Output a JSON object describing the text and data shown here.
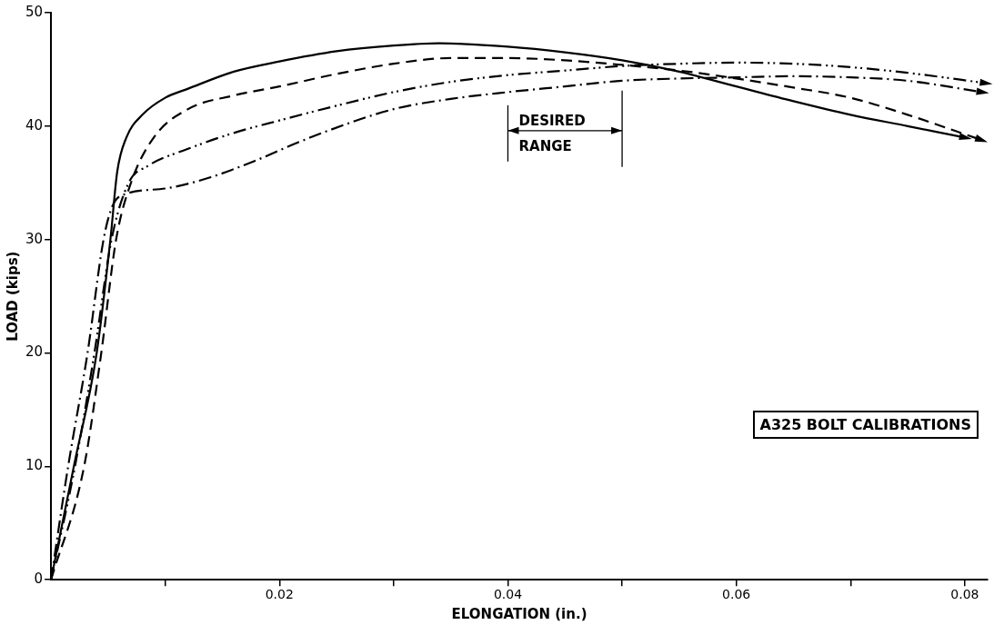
{
  "chart_data": {
    "type": "line",
    "xlabel": "ELONGATION (in.)",
    "ylabel": "LOAD (kips)",
    "xlim": [
      0,
      0.082
    ],
    "xticks": [
      {
        "value": 0.01,
        "label": null
      },
      0.02,
      {
        "value": 0.03,
        "label": null
      },
      0.04,
      {
        "value": 0.05,
        "label": null
      },
      0.06,
      {
        "value": 0.07,
        "label": null
      },
      0.08
    ],
    "ylim": [
      0,
      50
    ],
    "yticks": [
      0,
      10,
      20,
      30,
      40,
      50
    ],
    "grid": false,
    "legend": false,
    "marker": "none",
    "series": [
      {
        "color": "#000000",
        "line_style": "solid",
        "x": [
          0,
          0.002,
          0.004,
          0.0052,
          0.0058,
          0.0066,
          0.008,
          0.01,
          0.012,
          0.016,
          0.02,
          0.025,
          0.03,
          0.034,
          0.04,
          0.045,
          0.05,
          0.055,
          0.06,
          0.065,
          0.07,
          0.075,
          0.08
        ],
        "values": [
          0,
          10,
          20,
          30,
          36,
          39,
          41,
          42.5,
          43.3,
          44.8,
          45.7,
          46.6,
          47.1,
          47.3,
          47,
          46.5,
          45.8,
          44.8,
          43.5,
          42.2,
          41,
          40,
          39
        ]
      },
      {
        "color": "#000000",
        "line_style": "dashed",
        "x": [
          0,
          0.0029,
          0.0044,
          0.0057,
          0.007,
          0.009,
          0.012,
          0.016,
          0.02,
          0.025,
          0.03,
          0.035,
          0.04,
          0.045,
          0.05,
          0.055,
          0.058,
          0.065,
          0.07,
          0.075,
          0.0814
        ],
        "values": [
          0,
          10,
          20,
          30,
          35,
          39,
          41.5,
          42.7,
          43.5,
          44.6,
          45.5,
          46,
          46,
          45.8,
          45.4,
          44.9,
          44.5,
          43.4,
          42.5,
          41,
          38.8
        ]
      },
      {
        "color": "#000000",
        "line_style": "dashdotdot",
        "x": [
          0,
          0.0021,
          0.0038,
          0.0053,
          0.0068,
          0.0085,
          0.012,
          0.016,
          0.02,
          0.025,
          0.03,
          0.035,
          0.04,
          0.045,
          0.05,
          0.055,
          0.06,
          0.065,
          0.07,
          0.075,
          0.0818
        ],
        "values": [
          0,
          10,
          20,
          30,
          35,
          36.5,
          38,
          39.4,
          40.5,
          41.8,
          43,
          43.9,
          44.5,
          44.9,
          45.3,
          45.5,
          45.6,
          45.5,
          45.2,
          44.7,
          43.8
        ]
      },
      {
        "color": "#000000",
        "line_style": "dashdot",
        "x": [
          0,
          0.0015,
          0.0032,
          0.0046,
          0.0054,
          0.0065,
          0.01,
          0.014,
          0.018,
          0.021,
          0.024,
          0.03,
          0.035,
          0.04,
          0.045,
          0.05,
          0.055,
          0.06,
          0.065,
          0.07,
          0.075,
          0.0815
        ],
        "values": [
          0,
          10,
          20,
          30,
          33,
          34,
          34.5,
          35.5,
          37,
          38.3,
          39.5,
          41.5,
          42.4,
          43,
          43.5,
          44,
          44.2,
          44.3,
          44.4,
          44.3,
          44,
          43
        ]
      }
    ],
    "ref_lines": [
      {
        "axis": "x",
        "value": 0.04
      },
      {
        "axis": "x",
        "value": 0.05
      }
    ],
    "annotations": [
      {
        "text": "DESIRED RANGE",
        "x": 0.04,
        "y": 39.6
      },
      "A325 BOLT CALIBRATIONS"
    ]
  }
}
